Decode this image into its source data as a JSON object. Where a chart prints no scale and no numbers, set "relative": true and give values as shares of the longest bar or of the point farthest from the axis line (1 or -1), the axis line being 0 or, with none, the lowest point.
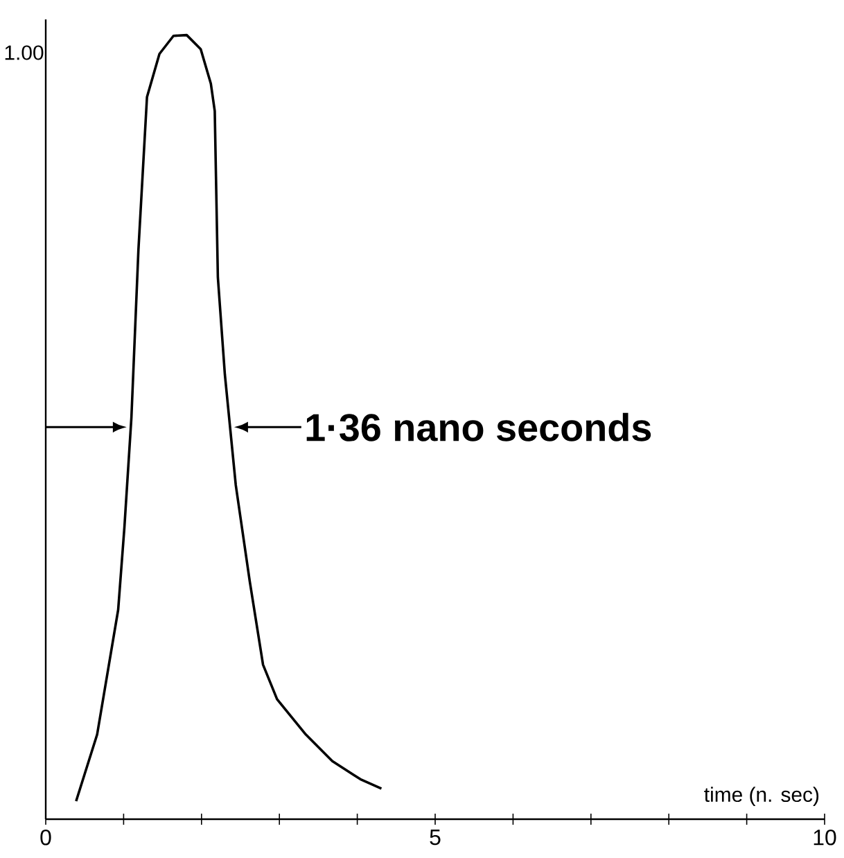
{
  "chart_data": {
    "type": "line",
    "relative": true,
    "xlabel": "time (n. sec)",
    "annotations": [
      "1·36 nano seconds",
      "1.00"
    ],
    "x": [
      0.39,
      0.66,
      0.93,
      1.01,
      1.1,
      1.19,
      1.3,
      1.46,
      1.64,
      1.81,
      1.99,
      2.12,
      2.17,
      2.21,
      2.3,
      2.44,
      2.62,
      2.79,
      2.97,
      3.33,
      3.68,
      4.04,
      4.31
    ],
    "series": [
      {
        "color": "#000000",
        "values": [
          0.023,
          0.108,
          0.267,
          0.372,
          0.512,
          0.726,
          0.921,
          0.976,
          0.999,
          1,
          0.982,
          0.938,
          0.903,
          0.691,
          0.567,
          0.426,
          0.303,
          0.197,
          0.153,
          0.109,
          0.074,
          0.051,
          0.039
        ]
      }
    ],
    "xlim": [
      0,
      10
    ],
    "xticks": [
      0,
      {
        "value": 1,
        "label": null
      },
      {
        "value": 2,
        "label": null
      },
      {
        "value": 3,
        "label": null
      },
      {
        "value": 4,
        "label": null
      },
      5,
      {
        "value": 6,
        "label": null
      },
      {
        "value": 7,
        "label": null
      },
      {
        "value": 8,
        "label": null
      },
      {
        "value": 9,
        "label": null
      },
      10
    ]
  }
}
